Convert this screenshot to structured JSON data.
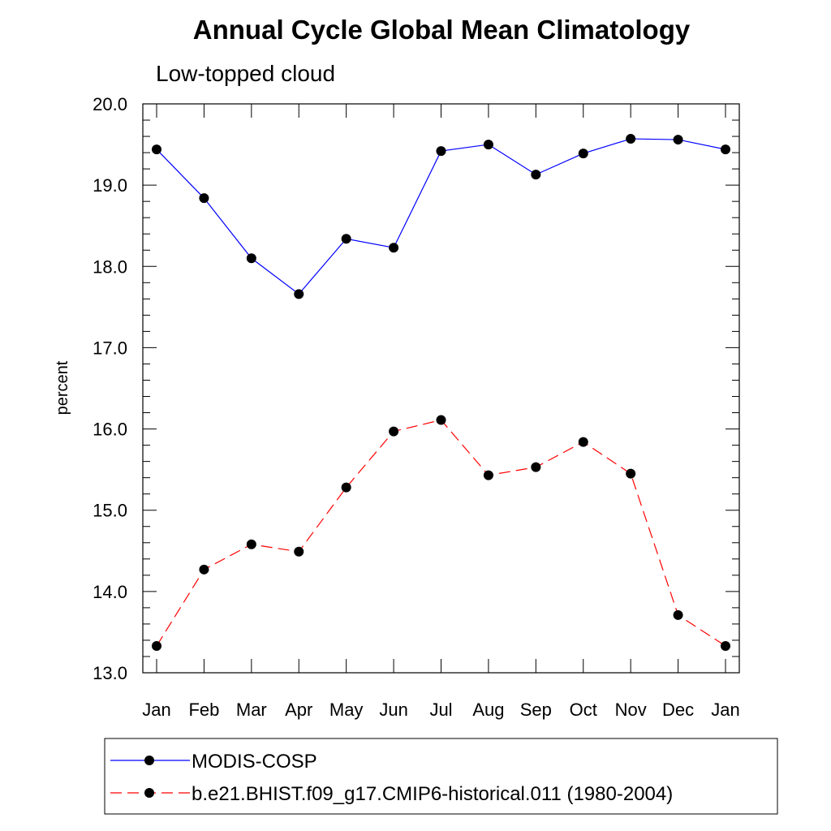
{
  "chart_data": {
    "type": "line",
    "title": "Annual Cycle Global Mean Climatology",
    "subtitle": "Low-topped cloud",
    "xlabel": "",
    "ylabel": "percent",
    "categories": [
      "Jan",
      "Feb",
      "Mar",
      "Apr",
      "May",
      "Jun",
      "Jul",
      "Aug",
      "Sep",
      "Oct",
      "Nov",
      "Dec",
      "Jan"
    ],
    "ylim": [
      13.0,
      20.0
    ],
    "yticks": [
      "13.0",
      "14.0",
      "15.0",
      "16.0",
      "17.0",
      "18.0",
      "19.0",
      "20.0"
    ],
    "grid": false,
    "legend_position": "bottom",
    "series": [
      {
        "name": "MODIS-COSP",
        "color": "#0000ff",
        "line_style": "solid",
        "marker": "filled-circle",
        "values": [
          19.44,
          18.84,
          18.1,
          17.66,
          18.34,
          18.23,
          19.42,
          19.5,
          19.13,
          19.39,
          19.57,
          19.56,
          19.44
        ]
      },
      {
        "name": "b.e21.BHIST.f09_g17.CMIP6-historical.011 (1980-2004)",
        "color": "#ff0000",
        "line_style": "dashed",
        "marker": "filled-circle",
        "values": [
          13.33,
          14.27,
          14.58,
          14.49,
          15.28,
          15.97,
          16.11,
          15.43,
          15.53,
          15.84,
          15.45,
          13.71,
          13.33
        ]
      }
    ]
  }
}
